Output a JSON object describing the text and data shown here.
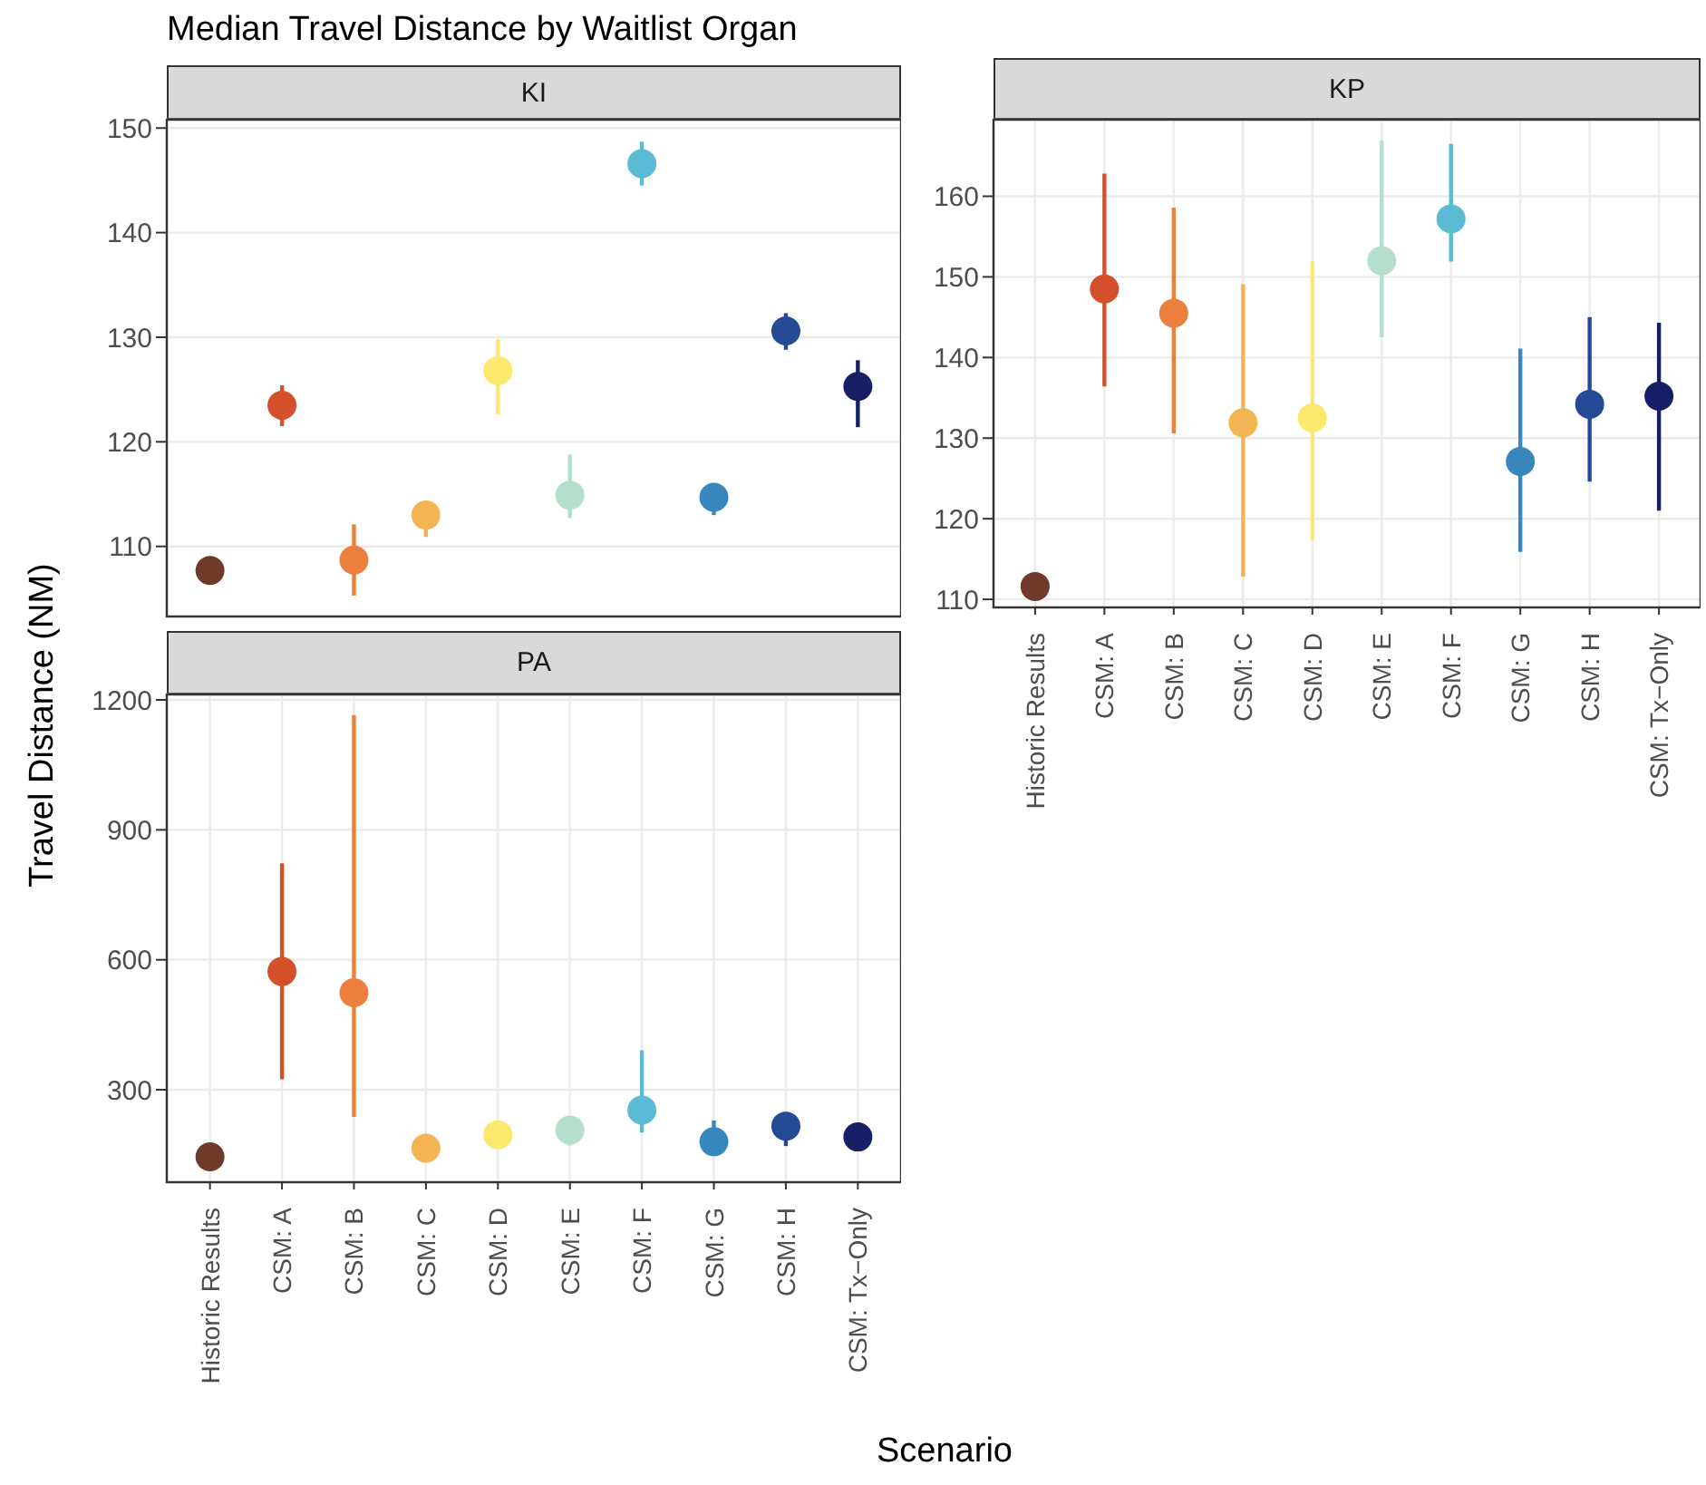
{
  "chart_data": [
    {
      "type": "scatter",
      "title": "Median Travel Distance by Waitlist Organ",
      "subtitle": "KI",
      "ylabel": "Travel Distance (NM)",
      "categories": [
        null,
        null,
        null,
        null,
        null,
        null,
        null,
        null,
        null,
        null
      ],
      "values": [
        107.7,
        123.5,
        108.7,
        113.0,
        126.8,
        114.9,
        146.6,
        114.7,
        130.6,
        125.3
      ],
      "errors": [
        null,
        [
          121.5,
          125.4
        ],
        [
          105.3,
          112.1
        ],
        [
          110.9,
          114.4
        ],
        [
          122.6,
          129.8
        ],
        [
          112.7,
          118.8
        ],
        [
          144.5,
          148.7
        ],
        [
          113.0,
          115.7
        ],
        [
          128.8,
          132.3
        ],
        [
          121.4,
          127.8
        ]
      ],
      "colors": [
        "#6e3b2a",
        "#d4502a",
        "#ec7f3c",
        "#f3b454",
        "#fde86e",
        "#b5dfcd",
        "#5bbbd4",
        "#3787bd",
        "#244a96",
        "#161f66"
      ],
      "ylim": [
        103.3,
        150.8
      ],
      "yticks": [
        110,
        120,
        130,
        140,
        150
      ],
      "grid": true,
      "tick_labels": "y",
      "marker": "circle"
    },
    {
      "type": "scatter",
      "subtitle": "KP",
      "categories": [
        "Historic Results",
        "CSM: A",
        "CSM: B",
        "CSM: C",
        "CSM: D",
        "CSM: E",
        "CSM: F",
        "CSM: G",
        "CSM: H",
        "CSM: Tx−Only"
      ],
      "values": [
        111.6,
        148.5,
        145.5,
        131.9,
        132.5,
        152.0,
        157.2,
        127.1,
        134.2,
        135.2
      ],
      "errors": [
        null,
        [
          136.4,
          162.8
        ],
        [
          130.6,
          158.6
        ],
        [
          112.8,
          149.1
        ],
        [
          117.4,
          151.9
        ],
        [
          142.5,
          166.9
        ],
        [
          151.9,
          166.5
        ],
        [
          115.9,
          141.1
        ],
        [
          124.6,
          145.0
        ],
        [
          121.0,
          144.3
        ]
      ],
      "colors": [
        "#6e3b2a",
        "#d4502a",
        "#ec7f3c",
        "#f3b454",
        "#fde86e",
        "#b5dfcd",
        "#5bbbd4",
        "#3787bd",
        "#244a96",
        "#161f66"
      ],
      "ylim": [
        109.0,
        169.5
      ],
      "yticks": [
        110,
        120,
        130,
        140,
        150,
        160
      ],
      "grid": true,
      "marker": "circle"
    },
    {
      "type": "scatter",
      "subtitle": "PA",
      "xlabel": "Scenario",
      "categories": [
        "Historic Results",
        "CSM: A",
        "CSM: B",
        "CSM: C",
        "CSM: D",
        "CSM: E",
        "CSM: F",
        "CSM: G",
        "CSM: H",
        "CSM: Tx−Only"
      ],
      "values": [
        145,
        573,
        524,
        165,
        196,
        207,
        253,
        180,
        216,
        191
      ],
      "errors": [
        null,
        [
          324,
          823
        ],
        [
          237,
          1165
        ],
        null,
        null,
        [
          171,
          236
        ],
        [
          201,
          391
        ],
        [
          180,
          229
        ],
        [
          170,
          247
        ],
        null
      ],
      "colors": [
        "#6e3b2a",
        "#d4502a",
        "#ec7f3c",
        "#f3b454",
        "#fde86e",
        "#b5dfcd",
        "#5bbbd4",
        "#3787bd",
        "#244a96",
        "#161f66"
      ],
      "ylim": [
        86.5,
        1212.6
      ],
      "yticks": [
        300,
        600,
        900,
        1200
      ],
      "grid": true,
      "marker": "circle"
    }
  ]
}
